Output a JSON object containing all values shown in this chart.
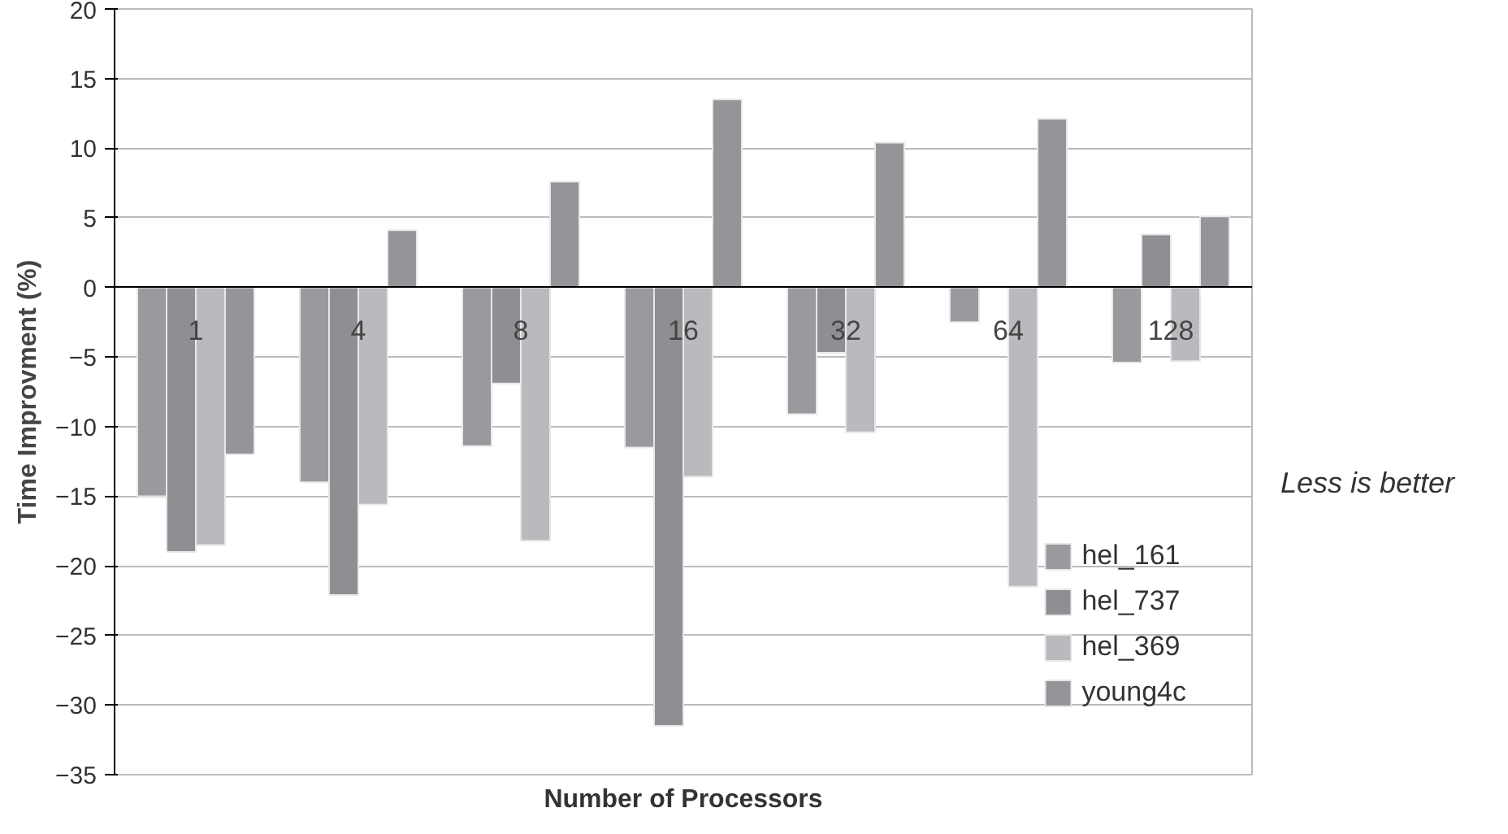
{
  "chart_data": {
    "type": "bar",
    "xlabel": "Number of Processors",
    "ylabel": "Time Improvment (%)",
    "categories": [
      "1",
      "4",
      "8",
      "16",
      "32",
      "64",
      "128"
    ],
    "series": [
      {
        "name": "hel_161",
        "color": "#999a9e",
        "values": [
          -15,
          -14,
          -11.4,
          -11.5,
          -9.1,
          -2.5,
          -5.4
        ]
      },
      {
        "name": "hel_737",
        "color": "#8e8f93",
        "values": [
          -19,
          -22.1,
          -6.9,
          -31.5,
          -4.7,
          null,
          3.8
        ]
      },
      {
        "name": "hel_369",
        "color": "#b9babd",
        "values": [
          -18.5,
          -15.6,
          -18.2,
          -13.6,
          -10.4,
          -21.5,
          -5.3
        ]
      },
      {
        "name": "young4c",
        "color": "#949599",
        "values": [
          -12,
          4.1,
          7.6,
          13.5,
          10.4,
          12.1,
          5.1
        ]
      }
    ],
    "ylim": [
      -35,
      20
    ],
    "yticks": [
      -35,
      -30,
      -25,
      -20,
      -15,
      -10,
      -5,
      0,
      5,
      10,
      15,
      20
    ],
    "grid": "y",
    "legend": "bottom right",
    "annotations": [
      "Less is better"
    ]
  }
}
